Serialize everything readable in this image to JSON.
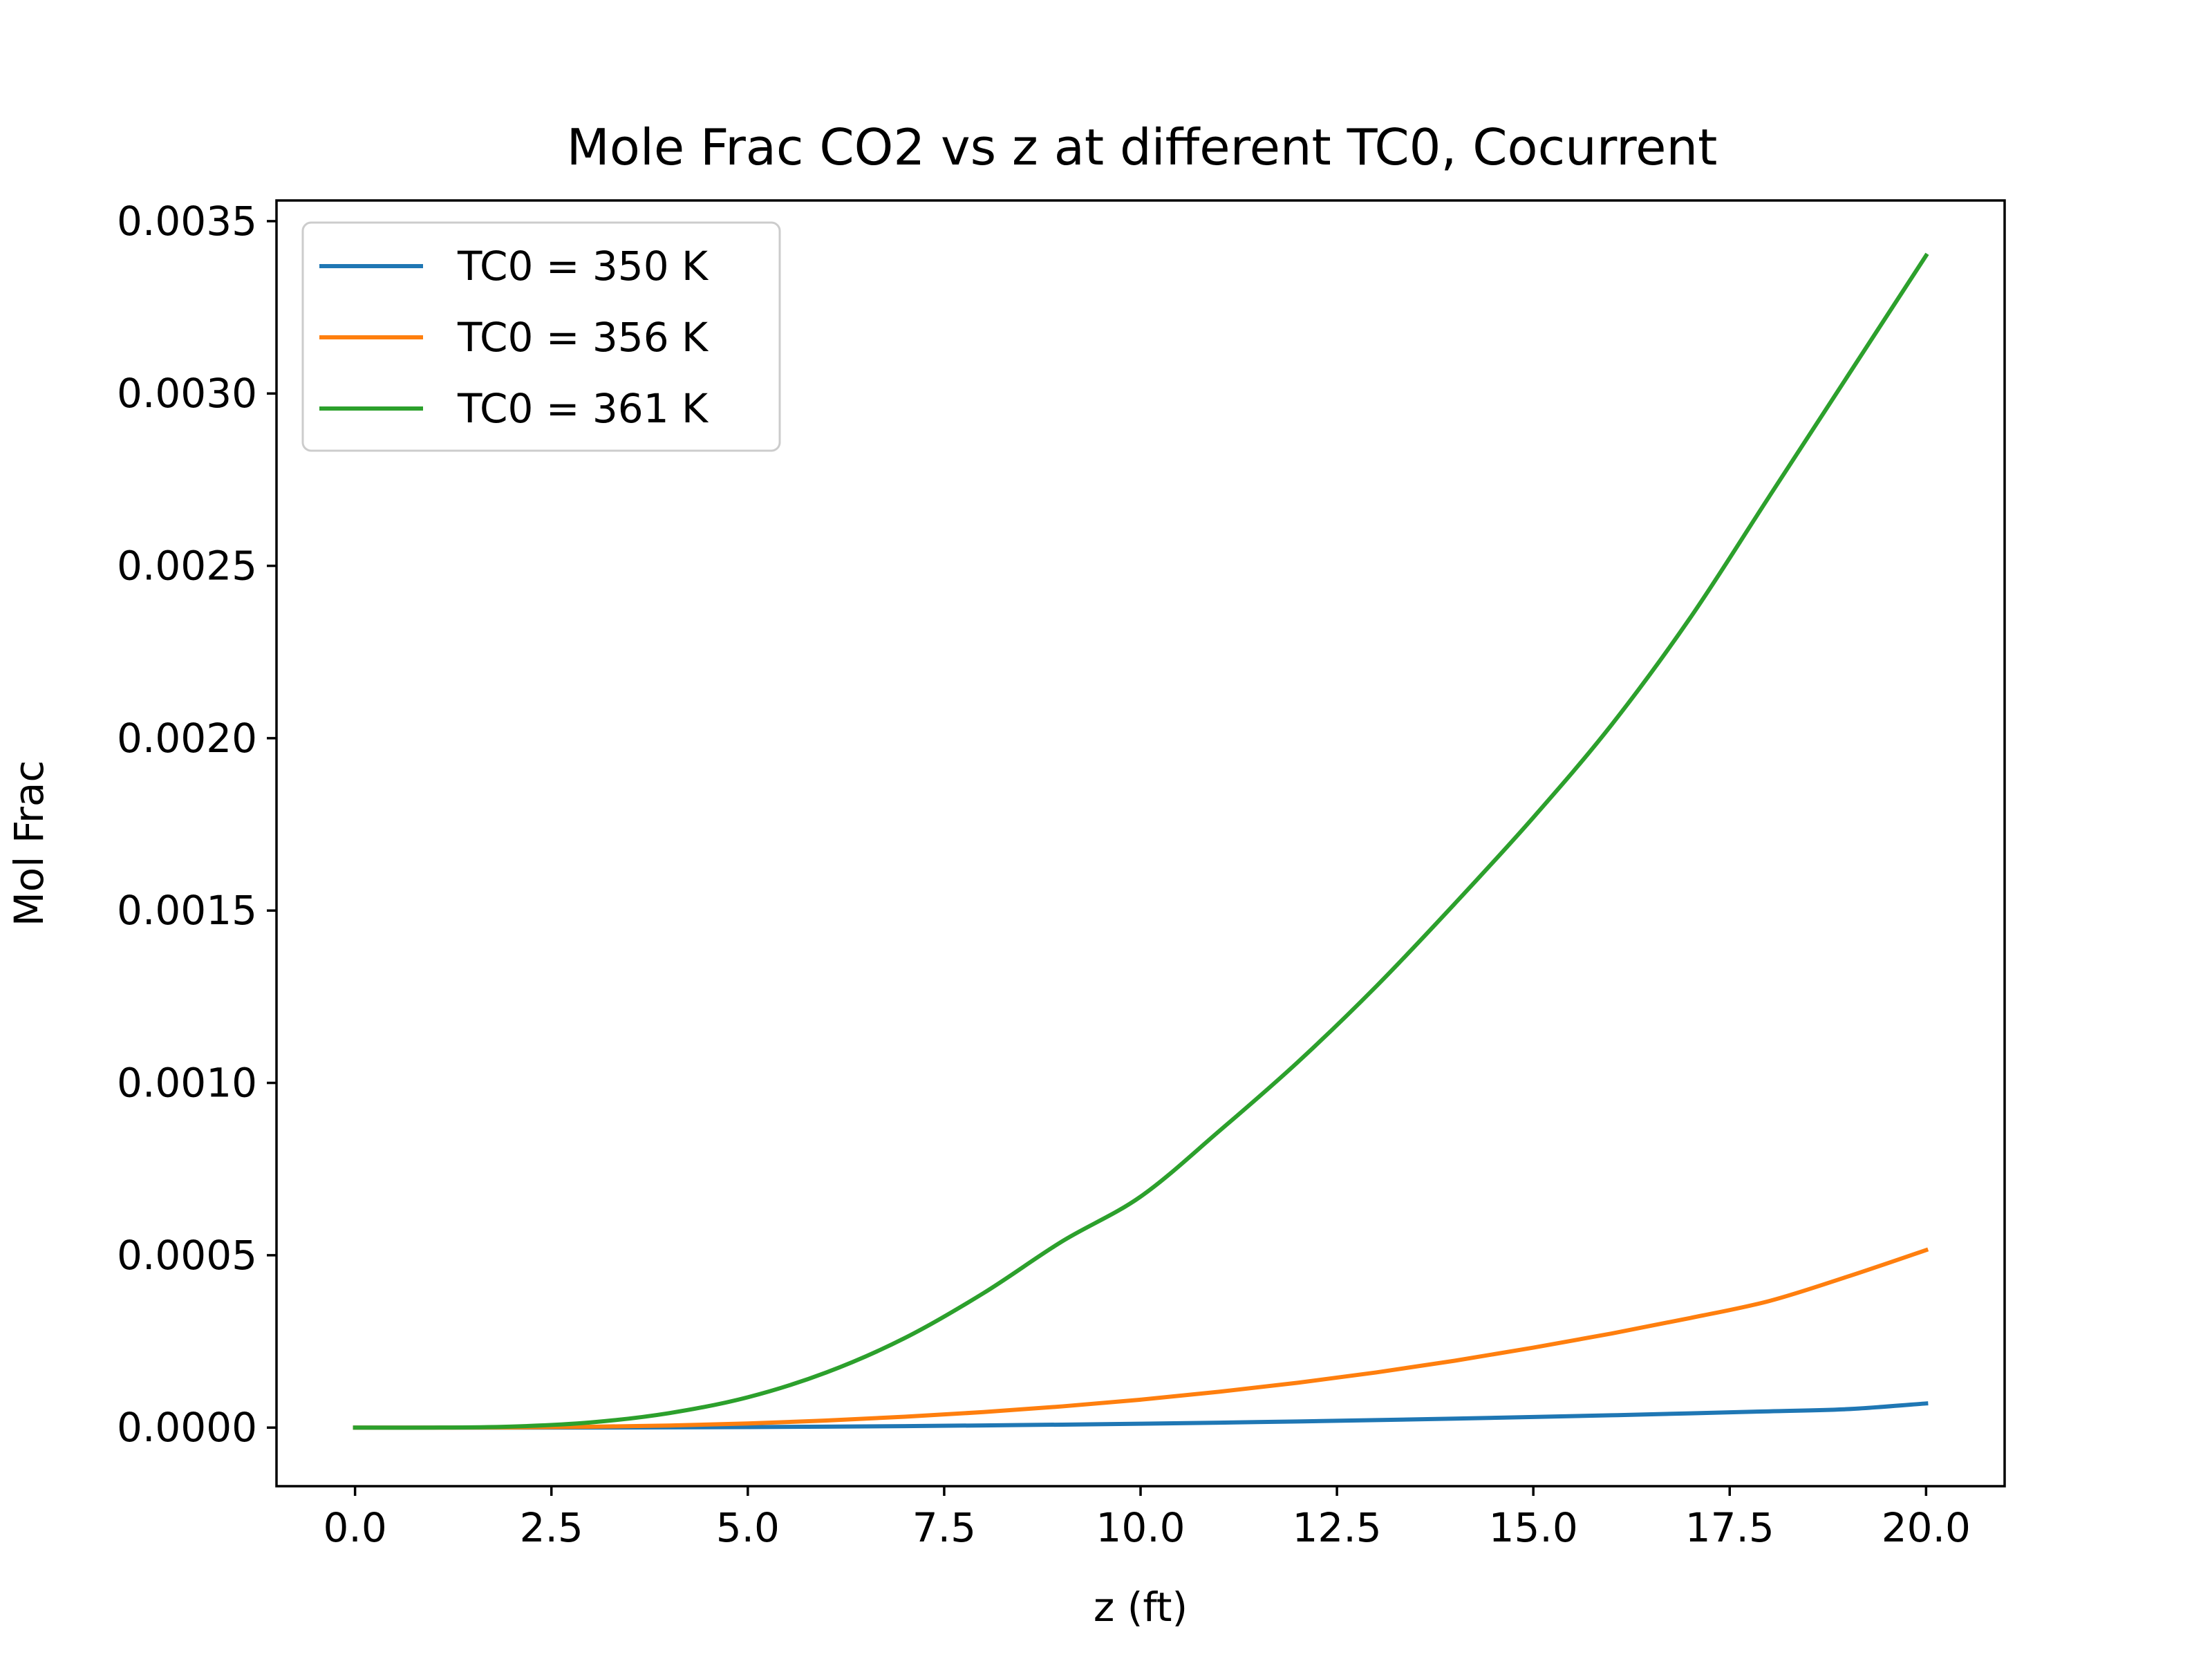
{
  "chart_data": {
    "type": "line",
    "title": "Mole Frac CO2 vs z at different TC0, Cocurrent",
    "xlabel": "z (ft)",
    "ylabel": "Mol Frac",
    "xlim": [
      -1.0,
      21.0
    ],
    "ylim": [
      -0.00017,
      0.00356
    ],
    "xticks": [
      0.0,
      2.5,
      5.0,
      7.5,
      10.0,
      12.5,
      15.0,
      17.5,
      20.0
    ],
    "xtick_labels": [
      "0.0",
      "2.5",
      "5.0",
      "7.5",
      "10.0",
      "12.5",
      "15.0",
      "17.5",
      "20.0"
    ],
    "yticks": [
      0.0,
      0.0005,
      0.001,
      0.0015,
      0.002,
      0.0025,
      0.003,
      0.0035
    ],
    "ytick_labels": [
      "0.0000",
      "0.0005",
      "0.0010",
      "0.0015",
      "0.0020",
      "0.0025",
      "0.0030",
      "0.0035"
    ],
    "grid": false,
    "legend_position": "top-left",
    "x": [
      0,
      1,
      2,
      3,
      4,
      5,
      6,
      7,
      8,
      9,
      10,
      11,
      12,
      13,
      14,
      15,
      16,
      17,
      18,
      19,
      20
    ],
    "series": [
      {
        "name": "TC0 = 350 K",
        "color": "#1f77b4",
        "values": [
          0,
          0,
          0,
          2e-07,
          6e-07,
          1.5e-06,
          2.7e-06,
          4.3e-06,
          6.3e-06,
          8.6e-06,
          1.13e-05,
          1.43e-05,
          1.78e-05,
          2.17e-05,
          2.6e-05,
          3.07e-05,
          3.58e-05,
          4.13e-05,
          4.72e-05,
          5.35e-05,
          7e-05
        ]
      },
      {
        "name": "TC0 = 356 K",
        "color": "#ff7f0e",
        "values": [
          0,
          0,
          5e-07,
          2.5e-06,
          6e-06,
          1.2e-05,
          2.05e-05,
          3.15e-05,
          4.5e-05,
          6.15e-05,
          8.1e-05,
          0.000104,
          0.00013,
          0.00016,
          0.000194,
          0.000232,
          0.000273,
          0.000318,
          0.000367,
          0.000438,
          0.000515
        ]
      },
      {
        "name": "TC0 = 361 K",
        "color": "#2ca02c",
        "values": [
          0,
          0,
          3e-06,
          1.5e-05,
          4.2e-05,
          8.8e-05,
          0.00016,
          0.00026,
          0.00039,
          0.00054,
          0.00067,
          0.00086,
          0.00106,
          0.00128,
          0.00152,
          0.00177,
          0.00204,
          0.00235,
          0.0027,
          0.00305,
          0.0034
        ]
      }
    ]
  }
}
